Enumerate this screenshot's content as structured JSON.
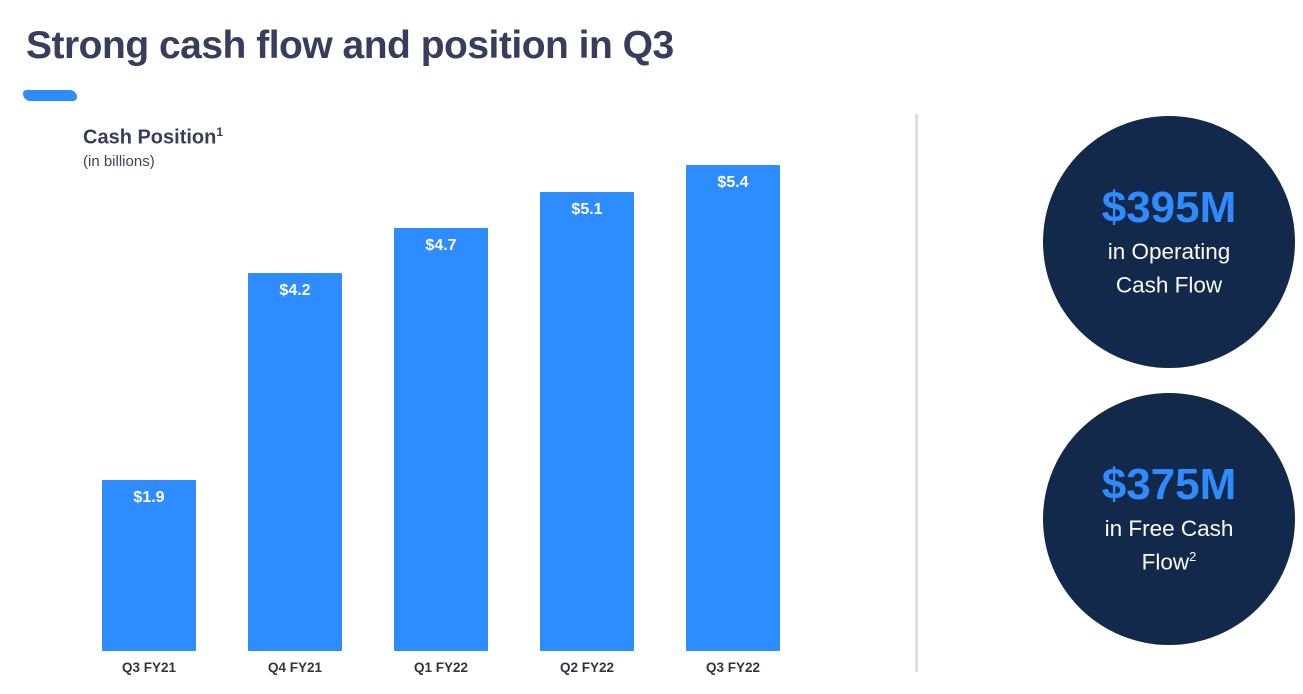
{
  "slide": {
    "title": "Strong cash flow and position in Q3"
  },
  "chart": {
    "heading": "Cash Position",
    "heading_superscript": "1",
    "subtitle": "(in billions)"
  },
  "chart_data": {
    "type": "bar",
    "title": "Cash Position (in billions)",
    "categories": [
      "Q3 FY21",
      "Q4 FY21",
      "Q1 FY22",
      "Q2 FY22",
      "Q3 FY22"
    ],
    "values": [
      1.9,
      4.2,
      4.7,
      5.1,
      5.4
    ],
    "value_labels": [
      "$1.9",
      "$4.2",
      "$4.7",
      "$5.1",
      "$5.4"
    ],
    "ylim": [
      0,
      5.5
    ],
    "grid": false,
    "legend": "none",
    "bar_color": "#2D8CFF",
    "value_label_color": "#FFFFFF",
    "value_label_position": "inside-top",
    "category_label_position": "below-bar"
  },
  "highlights": [
    {
      "amount": "$395M",
      "line1": "in Operating",
      "line2": "Cash Flow",
      "line2_superscript": ""
    },
    {
      "amount": "$375M",
      "line1": "in Free Cash",
      "line2": "Flow",
      "line2_superscript": "2"
    }
  ],
  "colors": {
    "accent_blue": "#2D8CFF",
    "circle_navy": "#12294B",
    "heading_text": "#373D5D",
    "axis_label_text": "#2E3442",
    "divider": "#DDDDDD"
  }
}
